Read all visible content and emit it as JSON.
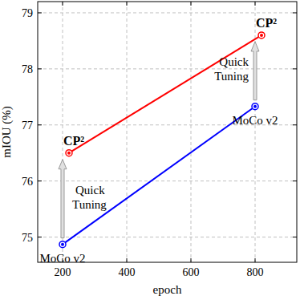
{
  "chart_data": {
    "type": "line",
    "x_label": "epoch",
    "y_label": "mIOU (%)",
    "series": [
      {
        "name": "MoCo v2",
        "color": "#0000ff",
        "marker": "circle",
        "x": [
          200,
          800
        ],
        "values": [
          74.87,
          77.33
        ]
      },
      {
        "name": "CP²",
        "color": "#ff0000",
        "marker": "circle",
        "x": [
          220,
          820
        ],
        "values": [
          76.5,
          78.6
        ]
      }
    ],
    "annotations": [
      "Quick Tuning",
      "Quick Tuning"
    ],
    "xlim": [
      122.5,
      930
    ],
    "xticks": [
      200,
      400,
      600,
      800
    ],
    "ylim": [
      74.55,
      79.2
    ],
    "yticks": [
      75,
      76,
      77,
      78,
      79
    ],
    "grid": true
  }
}
